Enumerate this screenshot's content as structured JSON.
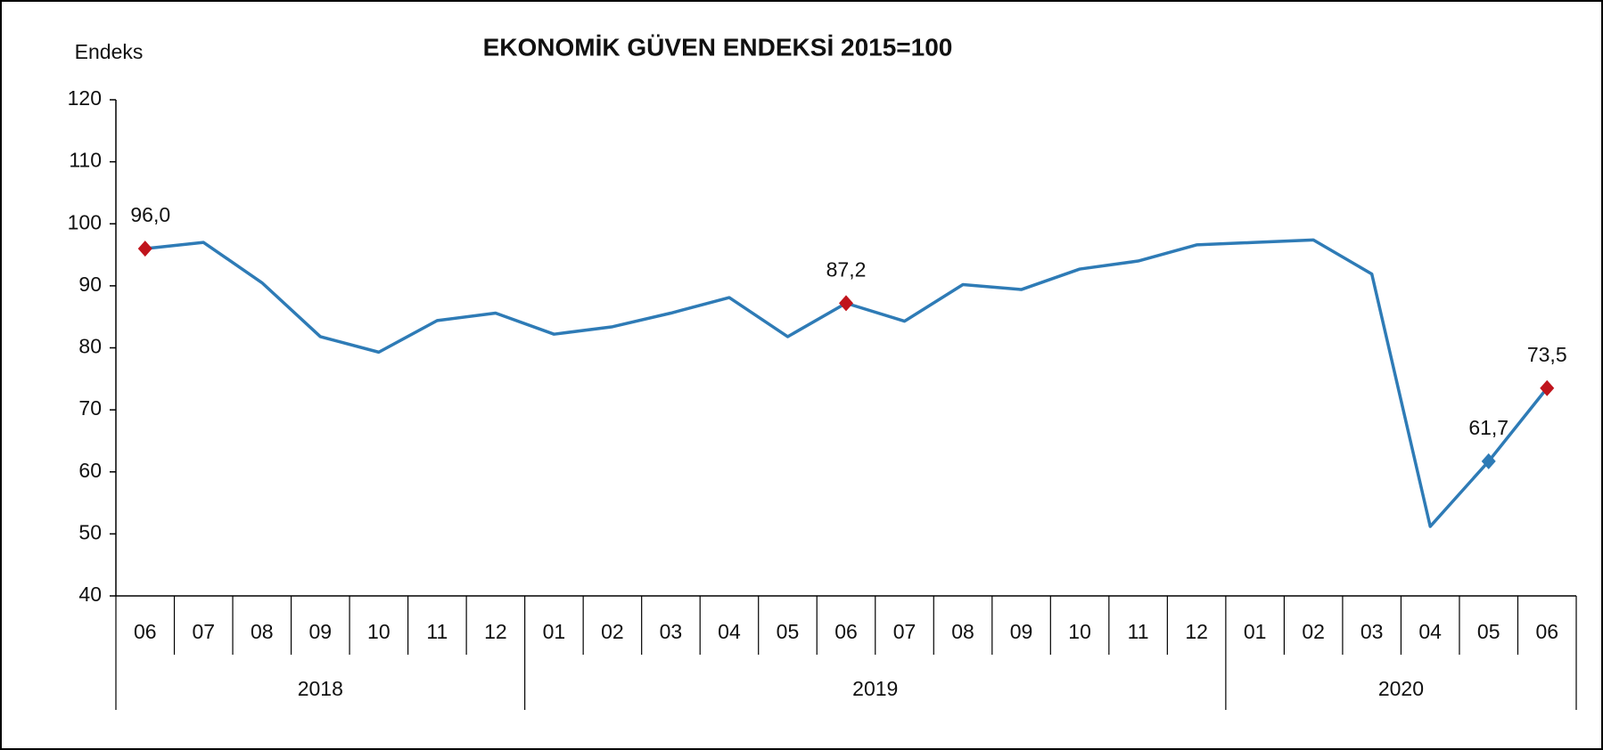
{
  "chart_data": {
    "type": "line",
    "title": "EKONOMİK GÜVEN ENDEKSİ 2015=100",
    "y_label": "Endeks",
    "categories": [
      "06",
      "07",
      "08",
      "09",
      "10",
      "11",
      "12",
      "01",
      "02",
      "03",
      "04",
      "05",
      "06",
      "07",
      "08",
      "09",
      "10",
      "11",
      "12",
      "01",
      "02",
      "03",
      "04",
      "05",
      "06"
    ],
    "groups": [
      {
        "label": "2018",
        "span": 7
      },
      {
        "label": "2019",
        "span": 12
      },
      {
        "label": "2020",
        "span": 6
      }
    ],
    "series": [
      {
        "name": "Endeks",
        "color": "#2e7bb6",
        "values": [
          96.0,
          97.0,
          90.5,
          81.8,
          79.3,
          84.4,
          85.6,
          82.2,
          83.4,
          85.6,
          88.1,
          81.8,
          87.2,
          84.3,
          90.2,
          89.4,
          92.7,
          94.0,
          96.6,
          97.0,
          97.4,
          91.9,
          51.2,
          61.7,
          73.5
        ],
        "value_labels": [
          "96,0",
          null,
          null,
          null,
          null,
          null,
          null,
          null,
          null,
          null,
          null,
          null,
          "87,2",
          null,
          null,
          null,
          null,
          null,
          null,
          null,
          null,
          null,
          null,
          "61,7",
          "73,5"
        ],
        "marker_colors": [
          "#c0141c",
          null,
          null,
          null,
          null,
          null,
          null,
          null,
          null,
          null,
          null,
          null,
          "#c0141c",
          null,
          null,
          null,
          null,
          null,
          null,
          null,
          null,
          null,
          null,
          "#2e7bb6",
          "#c0141c"
        ]
      }
    ],
    "ylim": [
      40,
      120
    ],
    "yticks": [
      40,
      50,
      60,
      70,
      80,
      90,
      100,
      110,
      120
    ],
    "grid": false
  }
}
